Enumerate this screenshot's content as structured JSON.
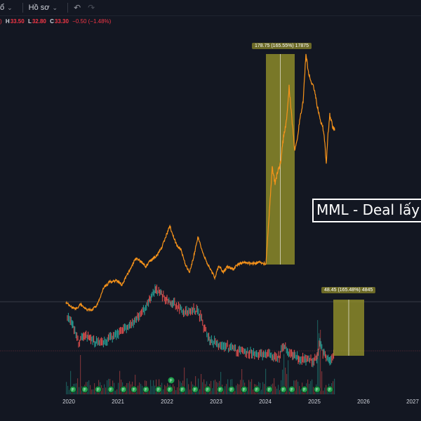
{
  "toolbar": {
    "interval_glyph": "ổ",
    "profile_label": "Hồ sơ"
  },
  "ohlc": {
    "open_fragment": ")",
    "high_label": "H",
    "high": "33.50",
    "low_label": "L",
    "low": "32.80",
    "close_label": "C",
    "close": "33.30",
    "change": "−0.50 (−1.48%)"
  },
  "annotation": {
    "text": "MML - Deal lấy"
  },
  "measure_top": {
    "text": "178.75 (165.55%) 17875"
  },
  "measure_bottom": {
    "text": "48.45 (165.48%) 4845"
  },
  "events": {
    "label": "F",
    "count": 22
  },
  "xaxis": {
    "ticks": [
      {
        "label": "2020",
        "year": 2020
      },
      {
        "label": "2021",
        "year": 2021
      },
      {
        "label": "2022",
        "year": 2022
      },
      {
        "label": "2023",
        "year": 2023
      },
      {
        "label": "2024",
        "year": 2024
      },
      {
        "label": "2025",
        "year": 2025
      },
      {
        "label": "2026",
        "year": 2026
      },
      {
        "label": "2027",
        "year": 2027
      }
    ]
  },
  "colors": {
    "background": "#131722",
    "line": "#f7931a",
    "up": "#26a69a",
    "down": "#ef5350",
    "measure_fill": "#9c9a2b",
    "event_badge": "#1e9e4b"
  }
}
